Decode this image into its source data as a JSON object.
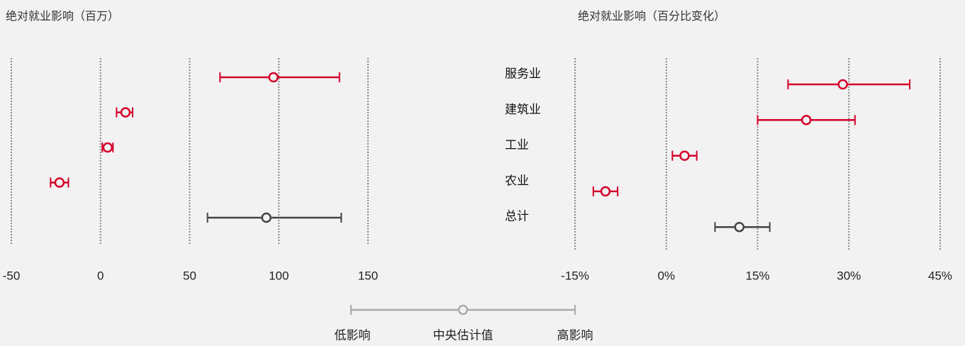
{
  "chart_data": [
    {
      "type": "dot_range",
      "title": "绝对就业影响（百万）",
      "xlim": [
        -50,
        150
      ],
      "xticks": [
        -50,
        0,
        50,
        100,
        150
      ],
      "grid": true,
      "values": [
        97,
        14,
        4,
        -23,
        93
      ],
      "low": [
        67,
        9,
        1,
        -28,
        60
      ],
      "high": [
        134,
        18,
        7,
        -18,
        135
      ],
      "colors": [
        "#d6002a",
        "#d6002a",
        "#d6002a",
        "#d6002a",
        "#444444"
      ]
    },
    {
      "type": "dot_range",
      "title": "绝对就业影响（百分比变化）",
      "categories": [
        "服务业",
        "建筑业",
        "工业",
        "农业",
        "总计"
      ],
      "xlim": [
        -15,
        45
      ],
      "xticks": [
        {
          "value": -15,
          "label": "-15%"
        },
        {
          "value": 0,
          "label": "0%"
        },
        {
          "value": 15,
          "label": "15%"
        },
        {
          "value": 30,
          "label": "30%"
        },
        {
          "value": 45,
          "label": "45%"
        }
      ],
      "grid": true,
      "values": [
        29,
        23,
        3,
        -10,
        12
      ],
      "low": [
        20,
        15,
        1,
        -12,
        8
      ],
      "high": [
        40,
        31,
        5,
        -8,
        17
      ],
      "colors": [
        "#d6002a",
        "#d6002a",
        "#d6002a",
        "#d6002a",
        "#444444"
      ]
    }
  ],
  "legend": {
    "low": "低影响",
    "center": "中央估计值",
    "high": "高影响",
    "color": "#aaaaaa"
  }
}
